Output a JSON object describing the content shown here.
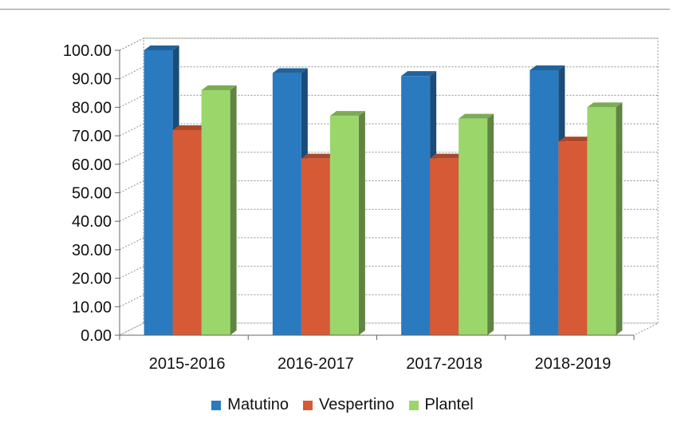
{
  "chart_data": {
    "type": "bar",
    "title": "",
    "xlabel": "",
    "ylabel": "",
    "categories": [
      "2015-2016",
      "2016-2017",
      "2017-2018",
      "2018-2019"
    ],
    "series": [
      {
        "name": "Matutino",
        "color": "#2a7ac0",
        "values": [
          100.0,
          92.0,
          91.0,
          93.0
        ]
      },
      {
        "name": "Vespertino",
        "color": "#d65a35",
        "values": [
          72.0,
          62.0,
          62.0,
          68.0
        ]
      },
      {
        "name": "Plantel",
        "color": "#9bd66a",
        "values": [
          86.0,
          77.0,
          76.0,
          80.0
        ]
      }
    ],
    "ylim": [
      0,
      100
    ],
    "yticks": [
      "0.00",
      "10.00",
      "20.00",
      "30.00",
      "40.00",
      "50.00",
      "60.00",
      "70.00",
      "80.00",
      "90.00",
      "100.00"
    ],
    "grid": true,
    "legend_position": "bottom",
    "style": "3d"
  }
}
